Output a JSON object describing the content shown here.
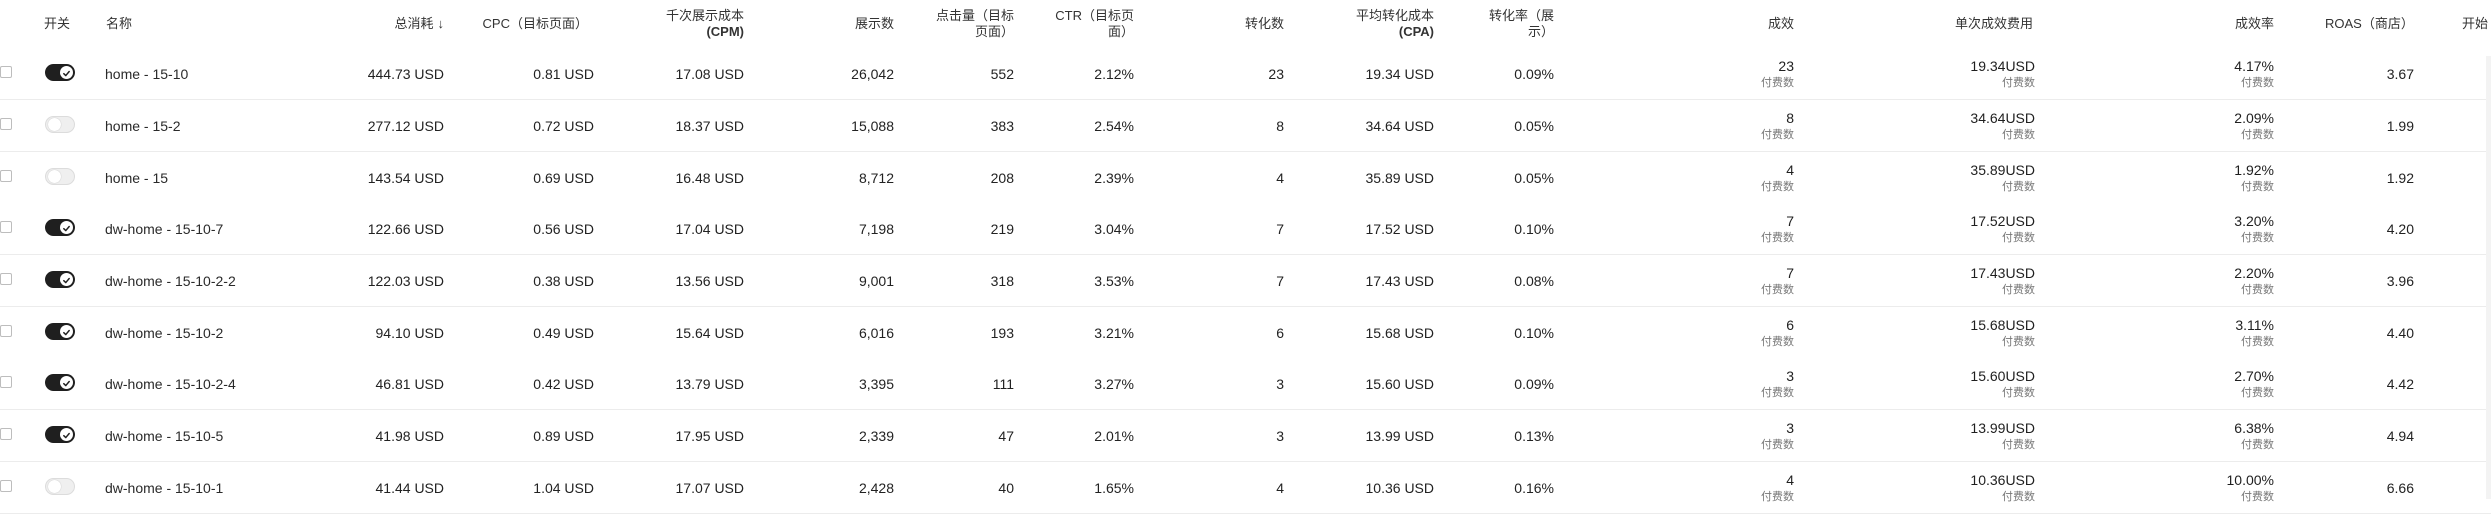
{
  "headers": {
    "toggle": "开关",
    "name": "名称",
    "spend": "总消耗",
    "sort_icon": "arrow-down",
    "cpc": "CPC（目标页面）",
    "cpm_line1": "千次展示成本",
    "cpm_line2": "(CPM)",
    "impressions": "展示数",
    "clicks_line1": "点击量（目标",
    "clicks_line2": "页面）",
    "ctr_line1": "CTR（目标页",
    "ctr_line2": "面）",
    "conversions": "转化数",
    "cpa_line1": "平均转化成本",
    "cpa_line2": "(CPA)",
    "cvr_line1": "转化率（展",
    "cvr_line2": "示）",
    "results": "成效",
    "cost_per_result": "单次成效费用",
    "result_rate": "成效率",
    "roas": "ROAS（商店）",
    "start": "开始"
  },
  "rows": [
    {
      "enabled": true,
      "name": "home - 15-10",
      "spend": "444.73 USD",
      "cpc": "0.81 USD",
      "cpm": "17.08 USD",
      "impressions": "26,042",
      "clicks": "552",
      "ctr": "2.12%",
      "conversions": "23",
      "cpa": "19.34 USD",
      "cvr": "0.09%",
      "results": "23",
      "results_sub": "付费数",
      "cost_per_result": "19.34USD",
      "cost_sub": "付费数",
      "result_rate": "4.17%",
      "rate_sub": "付费数",
      "roas": "3.67"
    },
    {
      "enabled": false,
      "name": "home - 15-2",
      "spend": "277.12 USD",
      "cpc": "0.72 USD",
      "cpm": "18.37 USD",
      "impressions": "15,088",
      "clicks": "383",
      "ctr": "2.54%",
      "conversions": "8",
      "cpa": "34.64 USD",
      "cvr": "0.05%",
      "results": "8",
      "results_sub": "付费数",
      "cost_per_result": "34.64USD",
      "cost_sub": "付费数",
      "result_rate": "2.09%",
      "rate_sub": "付费数",
      "roas": "1.99"
    },
    {
      "enabled": false,
      "name": "home - 15",
      "spend": "143.54 USD",
      "cpc": "0.69 USD",
      "cpm": "16.48 USD",
      "impressions": "8,712",
      "clicks": "208",
      "ctr": "2.39%",
      "conversions": "4",
      "cpa": "35.89 USD",
      "cvr": "0.05%",
      "results": "4",
      "results_sub": "付费数",
      "cost_per_result": "35.89USD",
      "cost_sub": "付费数",
      "result_rate": "1.92%",
      "rate_sub": "付费数",
      "roas": "1.92"
    },
    {
      "enabled": true,
      "name": "dw-home - 15-10-7",
      "spend": "122.66 USD",
      "cpc": "0.56 USD",
      "cpm": "17.04 USD",
      "impressions": "7,198",
      "clicks": "219",
      "ctr": "3.04%",
      "conversions": "7",
      "cpa": "17.52 USD",
      "cvr": "0.10%",
      "results": "7",
      "results_sub": "付费数",
      "cost_per_result": "17.52USD",
      "cost_sub": "付费数",
      "result_rate": "3.20%",
      "rate_sub": "付费数",
      "roas": "4.20"
    },
    {
      "enabled": true,
      "name": "dw-home - 15-10-2-2",
      "spend": "122.03 USD",
      "cpc": "0.38 USD",
      "cpm": "13.56 USD",
      "impressions": "9,001",
      "clicks": "318",
      "ctr": "3.53%",
      "conversions": "7",
      "cpa": "17.43 USD",
      "cvr": "0.08%",
      "results": "7",
      "results_sub": "付费数",
      "cost_per_result": "17.43USD",
      "cost_sub": "付费数",
      "result_rate": "2.20%",
      "rate_sub": "付费数",
      "roas": "3.96"
    },
    {
      "enabled": true,
      "name": "dw-home - 15-10-2",
      "spend": "94.10 USD",
      "cpc": "0.49 USD",
      "cpm": "15.64 USD",
      "impressions": "6,016",
      "clicks": "193",
      "ctr": "3.21%",
      "conversions": "6",
      "cpa": "15.68 USD",
      "cvr": "0.10%",
      "results": "6",
      "results_sub": "付费数",
      "cost_per_result": "15.68USD",
      "cost_sub": "付费数",
      "result_rate": "3.11%",
      "rate_sub": "付费数",
      "roas": "4.40"
    },
    {
      "enabled": true,
      "name": "dw-home - 15-10-2-4",
      "spend": "46.81 USD",
      "cpc": "0.42 USD",
      "cpm": "13.79 USD",
      "impressions": "3,395",
      "clicks": "111",
      "ctr": "3.27%",
      "conversions": "3",
      "cpa": "15.60 USD",
      "cvr": "0.09%",
      "results": "3",
      "results_sub": "付费数",
      "cost_per_result": "15.60USD",
      "cost_sub": "付费数",
      "result_rate": "2.70%",
      "rate_sub": "付费数",
      "roas": "4.42"
    },
    {
      "enabled": true,
      "name": "dw-home - 15-10-5",
      "spend": "41.98 USD",
      "cpc": "0.89 USD",
      "cpm": "17.95 USD",
      "impressions": "2,339",
      "clicks": "47",
      "ctr": "2.01%",
      "conversions": "3",
      "cpa": "13.99 USD",
      "cvr": "0.13%",
      "results": "3",
      "results_sub": "付费数",
      "cost_per_result": "13.99USD",
      "cost_sub": "付费数",
      "result_rate": "6.38%",
      "rate_sub": "付费数",
      "roas": "4.94"
    },
    {
      "enabled": false,
      "name": "dw-home - 15-10-1",
      "spend": "41.44 USD",
      "cpc": "1.04 USD",
      "cpm": "17.07 USD",
      "impressions": "2,428",
      "clicks": "40",
      "ctr": "1.65%",
      "conversions": "4",
      "cpa": "10.36 USD",
      "cvr": "0.16%",
      "results": "4",
      "results_sub": "付费数",
      "cost_per_result": "10.36USD",
      "cost_sub": "付费数",
      "result_rate": "10.00%",
      "rate_sub": "付费数",
      "roas": "6.66"
    }
  ],
  "colors": {
    "toggle_on": "#1f1f1f",
    "toggle_off": "#efefef",
    "header_text": "#333333",
    "row_border": "#ececec"
  }
}
